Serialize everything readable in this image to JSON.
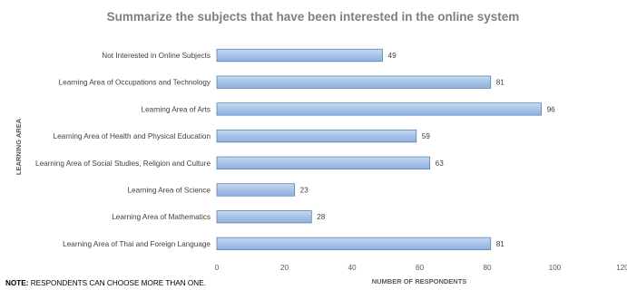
{
  "chart_data": {
    "type": "bar",
    "orientation": "horizontal",
    "title": "Summarize the subjects that have been interested in the online system",
    "xlabel": "NUMBER OF RESPONDENTS",
    "ylabel": "LEARNING AREA",
    "xlim": [
      0,
      120
    ],
    "xticks": [
      0,
      20,
      40,
      60,
      80,
      100,
      120
    ],
    "grid": false,
    "data_labels": true,
    "bar_color": "#9bbbe0",
    "bar_edge_color": "#5b83b8",
    "categories": [
      "Not Interested in Online Subjects",
      "Learning Area of Occupations and Technology",
      "Learning Area of Arts",
      "Learning Area of Health and Physical Education",
      "Learning Area of Social Studies, Religion and Culture",
      "Learning Area of Science",
      "Learning Area of Mathematics",
      "Learning Area of Thai and Foreign Language"
    ],
    "values": [
      49,
      81,
      96,
      59,
      63,
      23,
      28,
      81
    ]
  },
  "note": {
    "prefix": "NOTE:",
    "text": " RESPONDENTS CAN CHOOSE MORE THAN ONE."
  }
}
